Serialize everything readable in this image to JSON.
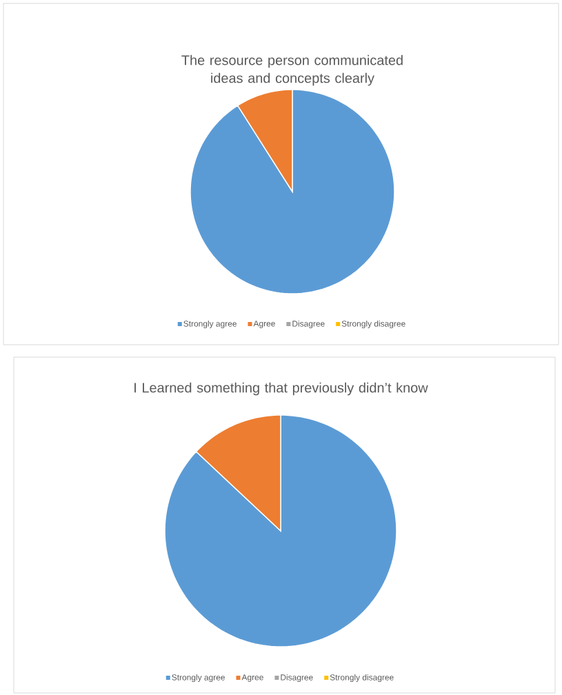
{
  "chart_data": [
    {
      "type": "pie",
      "title": "The resource person communicated ideas and concepts clearly",
      "categories": [
        "Strongly agree",
        "Agree",
        "Disagree",
        "Strongly disagree"
      ],
      "values": [
        91,
        9,
        0,
        0
      ],
      "colors": [
        "#5b9bd5",
        "#ed7d31",
        "#a5a5a5",
        "#ffc000"
      ],
      "legend": "bottom"
    },
    {
      "type": "pie",
      "title": "I Learned something that previously didn’t know",
      "categories": [
        "Strongly agree",
        "Agree",
        "Disagree",
        "Strongly disagree"
      ],
      "values": [
        87,
        13,
        0,
        0
      ],
      "colors": [
        "#5b9bd5",
        "#ed7d31",
        "#a5a5a5",
        "#ffc000"
      ],
      "legend": "bottom"
    }
  ]
}
